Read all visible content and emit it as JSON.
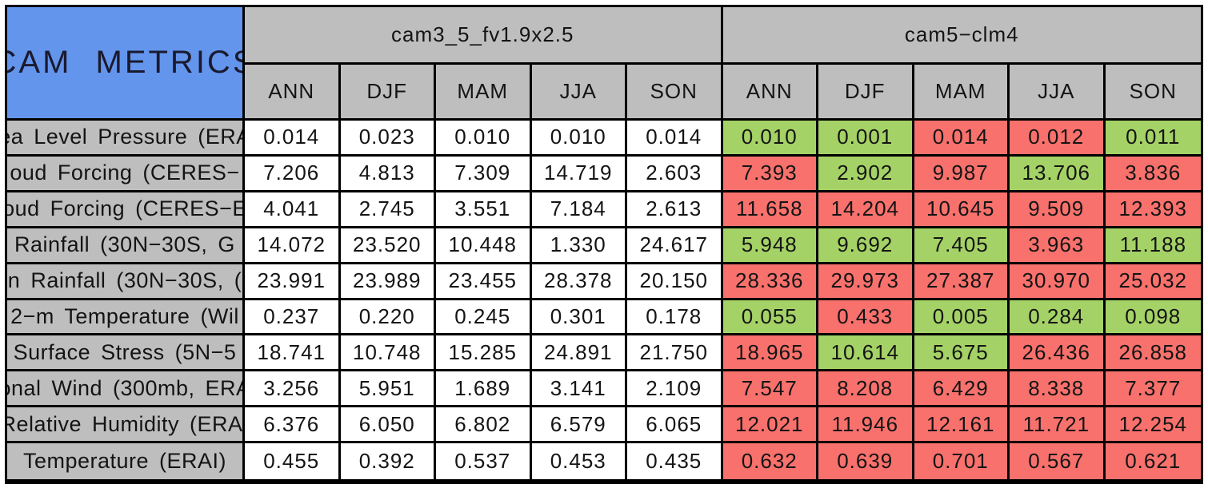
{
  "colors": {
    "title_bg": "#6495ED",
    "header_bg": "#BEBEBE",
    "label_bg": "#BEBEBE",
    "value_bg": "#FFFFFF",
    "better_bg": "#A5D266",
    "worse_bg": "#F8716C",
    "border": "#000000",
    "page_bg": "#FFFFFF"
  },
  "chart_data": {
    "type": "table",
    "title": "CAM METRICS",
    "models": [
      {
        "name": "cam3_5_fv1.9x2.5"
      },
      {
        "name": "cam5−clm4"
      }
    ],
    "season_columns": [
      "ANN",
      "DJF",
      "MAM",
      "JJA",
      "SON"
    ],
    "rows": [
      {
        "label": "ea Level Pressure (ERA",
        "model1_values": [
          "0.014",
          "0.023",
          "0.010",
          "0.010",
          "0.014"
        ],
        "model2_values": [
          "0.010",
          "0.001",
          "0.014",
          "0.012",
          "0.011"
        ],
        "model2_status": [
          "better",
          "better",
          "worse",
          "worse",
          "better"
        ]
      },
      {
        "label": "oud Forcing (CERES−",
        "model1_values": [
          "7.206",
          "4.813",
          "7.309",
          "14.719",
          "2.603"
        ],
        "model2_values": [
          "7.393",
          "2.902",
          "9.987",
          "13.706",
          "3.836"
        ],
        "model2_status": [
          "worse",
          "better",
          "worse",
          "better",
          "worse"
        ]
      },
      {
        "label": "oud Forcing (CERES−E",
        "model1_values": [
          "4.041",
          "2.745",
          "3.551",
          "7.184",
          "2.613"
        ],
        "model2_values": [
          "11.658",
          "14.204",
          "10.645",
          "9.509",
          "12.393"
        ],
        "model2_status": [
          "worse",
          "worse",
          "worse",
          "worse",
          "worse"
        ]
      },
      {
        "label": "Rainfall (30N−30S, G",
        "model1_values": [
          "14.072",
          "23.520",
          "10.448",
          "1.330",
          "24.617"
        ],
        "model2_values": [
          "5.948",
          "9.692",
          "7.405",
          "3.963",
          "11.188"
        ],
        "model2_status": [
          "better",
          "better",
          "better",
          "worse",
          "better"
        ]
      },
      {
        "label": "n Rainfall (30N−30S, (",
        "model1_values": [
          "23.991",
          "23.989",
          "23.455",
          "28.378",
          "20.150"
        ],
        "model2_values": [
          "28.336",
          "29.973",
          "27.387",
          "30.970",
          "25.032"
        ],
        "model2_status": [
          "worse",
          "worse",
          "worse",
          "worse",
          "worse"
        ]
      },
      {
        "label": "2−m Temperature (Wil",
        "model1_values": [
          "0.237",
          "0.220",
          "0.245",
          "0.301",
          "0.178"
        ],
        "model2_values": [
          "0.055",
          "0.433",
          "0.005",
          "0.284",
          "0.098"
        ],
        "model2_status": [
          "better",
          "worse",
          "better",
          "better",
          "better"
        ]
      },
      {
        "label": "Surface Stress (5N−5",
        "model1_values": [
          "18.741",
          "10.748",
          "15.285",
          "24.891",
          "21.750"
        ],
        "model2_values": [
          "18.965",
          "10.614",
          "5.675",
          "26.436",
          "26.858"
        ],
        "model2_status": [
          "worse",
          "better",
          "better",
          "worse",
          "worse"
        ]
      },
      {
        "label": "onal Wind (300mb, ERA",
        "model1_values": [
          "3.256",
          "5.951",
          "1.689",
          "3.141",
          "2.109"
        ],
        "model2_values": [
          "7.547",
          "8.208",
          "6.429",
          "8.338",
          "7.377"
        ],
        "model2_status": [
          "worse",
          "worse",
          "worse",
          "worse",
          "worse"
        ]
      },
      {
        "label": "Relative Humidity (ERAI",
        "model1_values": [
          "6.376",
          "6.050",
          "6.802",
          "6.579",
          "6.065"
        ],
        "model2_values": [
          "12.021",
          "11.946",
          "12.161",
          "11.721",
          "12.254"
        ],
        "model2_status": [
          "worse",
          "worse",
          "worse",
          "worse",
          "worse"
        ]
      },
      {
        "label": "Temperature (ERAI)",
        "model1_values": [
          "0.455",
          "0.392",
          "0.537",
          "0.453",
          "0.435"
        ],
        "model2_values": [
          "0.632",
          "0.639",
          "0.701",
          "0.567",
          "0.621"
        ],
        "model2_status": [
          "worse",
          "worse",
          "worse",
          "worse",
          "worse"
        ]
      }
    ]
  }
}
